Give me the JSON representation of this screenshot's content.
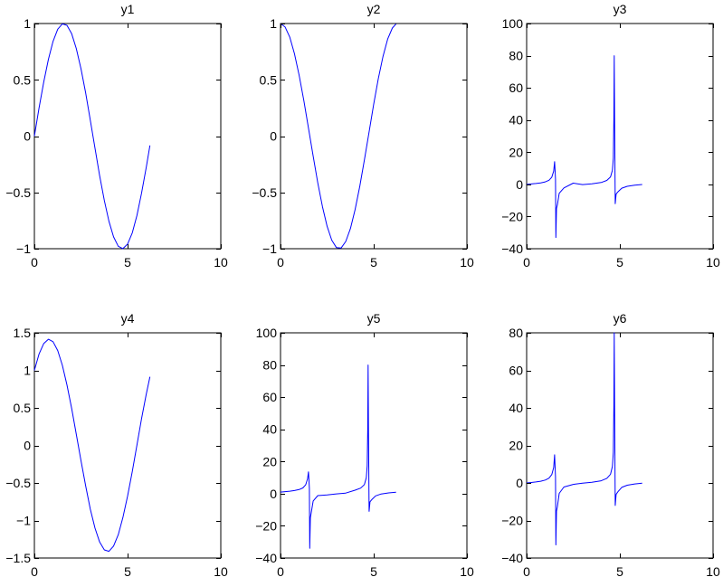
{
  "chart_data": [
    {
      "type": "line",
      "title": "y1",
      "xlim": [
        0,
        10
      ],
      "ylim": [
        -1,
        1
      ],
      "xticks": [
        0,
        5,
        10
      ],
      "xtick_labels": [
        "0",
        "5",
        "10"
      ],
      "yticks": [
        -1,
        -0.5,
        0,
        0.5,
        1
      ],
      "ytick_labels": [
        "−1",
        "−0.5",
        "0",
        "0.5",
        "1"
      ],
      "grid": false,
      "series": [
        {
          "color": "#0000ff",
          "x": [
            0,
            0.25,
            0.5,
            0.75,
            1,
            1.25,
            1.5,
            1.75,
            2,
            2.25,
            2.5,
            2.75,
            3,
            3.25,
            3.5,
            3.75,
            4,
            4.25,
            4.5,
            4.75,
            5,
            5.25,
            5.5,
            5.75,
            6,
            6.2
          ],
          "y": [
            0,
            0.247,
            0.479,
            0.682,
            0.841,
            0.949,
            0.997,
            0.984,
            0.909,
            0.778,
            0.598,
            0.382,
            0.141,
            -0.108,
            -0.351,
            -0.572,
            -0.757,
            -0.895,
            -0.978,
            -0.999,
            -0.959,
            -0.859,
            -0.706,
            -0.508,
            -0.279,
            -0.083
          ]
        }
      ]
    },
    {
      "type": "line",
      "title": "y2",
      "xlim": [
        0,
        10
      ],
      "ylim": [
        -1,
        1
      ],
      "xticks": [
        0,
        5,
        10
      ],
      "xtick_labels": [
        "0",
        "5",
        "10"
      ],
      "yticks": [
        -1,
        -0.5,
        0,
        0.5,
        1
      ],
      "ytick_labels": [
        "−1",
        "−0.5",
        "0",
        "0.5",
        "1"
      ],
      "grid": false,
      "series": [
        {
          "color": "#0000ff",
          "x": [
            0,
            0.25,
            0.5,
            0.75,
            1,
            1.25,
            1.5,
            1.75,
            2,
            2.25,
            2.5,
            2.75,
            3,
            3.25,
            3.5,
            3.75,
            4,
            4.25,
            4.5,
            4.75,
            5,
            5.25,
            5.5,
            5.75,
            6,
            6.2
          ],
          "y": [
            1,
            0.969,
            0.878,
            0.732,
            0.54,
            0.315,
            0.071,
            -0.178,
            -0.416,
            -0.628,
            -0.801,
            -0.924,
            -0.99,
            -0.994,
            -0.936,
            -0.82,
            -0.654,
            -0.446,
            -0.211,
            0.038,
            0.284,
            0.512,
            0.709,
            0.862,
            0.96,
            0.997
          ]
        }
      ]
    },
    {
      "type": "line",
      "title": "y3",
      "xlim": [
        0,
        10
      ],
      "ylim": [
        -40,
        100
      ],
      "xticks": [
        0,
        5,
        10
      ],
      "xtick_labels": [
        "0",
        "5",
        "10"
      ],
      "yticks": [
        -40,
        -20,
        0,
        20,
        40,
        60,
        80,
        100
      ],
      "ytick_labels": [
        "−40",
        "−20",
        "0",
        "20",
        "40",
        "60",
        "80",
        "100"
      ],
      "grid": false,
      "series": [
        {
          "color": "#0000ff",
          "x": [
            0,
            0.25,
            0.5,
            0.75,
            1,
            1.2,
            1.35,
            1.45,
            1.5,
            1.53,
            1.55,
            1.57,
            1.6,
            1.65,
            1.75,
            2,
            2.5,
            3,
            3.5,
            4,
            4.3,
            4.5,
            4.6,
            4.65,
            4.68,
            4.7,
            4.72,
            4.75,
            4.8,
            4.9,
            5.1,
            5.4,
            5.8,
            6.2
          ],
          "y": [
            0,
            0.26,
            0.55,
            0.93,
            1.56,
            2.57,
            4.46,
            8.24,
            14.1,
            8,
            3.2,
            -33,
            -15,
            -12.6,
            -5.52,
            -2.19,
            0.75,
            -0.14,
            0.37,
            1.16,
            2.44,
            4.64,
            8.86,
            16.3,
            41,
            80,
            42,
            -12,
            -6.05,
            -4.66,
            -2.38,
            -1.22,
            -0.52,
            -0.08
          ]
        }
      ]
    },
    {
      "type": "line",
      "title": "y4",
      "xlim": [
        0,
        10
      ],
      "ylim": [
        -1.5,
        1.5
      ],
      "xticks": [
        0,
        5,
        10
      ],
      "xtick_labels": [
        "0",
        "5",
        "10"
      ],
      "yticks": [
        -1.5,
        -1,
        -0.5,
        0,
        0.5,
        1,
        1.5
      ],
      "ytick_labels": [
        "−1.5",
        "−1",
        "−0.5",
        "0",
        "0.5",
        "1",
        "1.5"
      ],
      "grid": false,
      "series": [
        {
          "color": "#0000ff",
          "x": [
            0,
            0.25,
            0.5,
            0.75,
            1,
            1.25,
            1.5,
            1.75,
            2,
            2.25,
            2.5,
            2.75,
            3,
            3.25,
            3.5,
            3.75,
            4,
            4.25,
            4.5,
            4.75,
            5,
            5.25,
            5.5,
            5.75,
            6,
            6.2
          ],
          "y": [
            1,
            1.216,
            1.357,
            1.414,
            1.382,
            1.264,
            1.068,
            0.806,
            0.493,
            0.15,
            -0.203,
            -0.541,
            -0.849,
            -1.102,
            -1.287,
            -1.392,
            -1.411,
            -1.341,
            -1.189,
            -0.961,
            -0.675,
            -0.347,
            0.003,
            0.354,
            0.681,
            0.914
          ]
        }
      ]
    },
    {
      "type": "line",
      "title": "y5",
      "xlim": [
        0,
        10
      ],
      "ylim": [
        -40,
        100
      ],
      "xticks": [
        0,
        5,
        10
      ],
      "xtick_labels": [
        "0",
        "5",
        "10"
      ],
      "yticks": [
        -40,
        -20,
        0,
        20,
        40,
        60,
        80,
        100
      ],
      "ytick_labels": [
        "−40",
        "−20",
        "0",
        "20",
        "40",
        "60",
        "80",
        "100"
      ],
      "grid": false,
      "series": [
        {
          "color": "#0000ff",
          "x": [
            0,
            0.25,
            0.5,
            0.75,
            1,
            1.2,
            1.35,
            1.45,
            1.5,
            1.53,
            1.55,
            1.57,
            1.6,
            1.65,
            1.75,
            2,
            2.5,
            3,
            3.5,
            4,
            4.3,
            4.5,
            4.6,
            4.65,
            4.68,
            4.7,
            4.72,
            4.75,
            4.8,
            4.9,
            5.1,
            5.4,
            5.8,
            6.2
          ],
          "y": [
            1,
            1.26,
            1.55,
            1.93,
            2.56,
            3.57,
            5.46,
            9.24,
            13.6,
            8,
            3.2,
            -34,
            -15,
            -11.6,
            -4.52,
            -1.19,
            -0.75,
            -0.14,
            0.37,
            2.16,
            3.44,
            5.64,
            9.86,
            17.3,
            40,
            80,
            42,
            -11,
            -5.05,
            -3.66,
            -1.38,
            -0.22,
            0.48,
            0.92
          ]
        }
      ]
    },
    {
      "type": "line",
      "title": "y6",
      "xlim": [
        0,
        10
      ],
      "ylim": [
        -40,
        80
      ],
      "xticks": [
        0,
        5,
        10
      ],
      "xtick_labels": [
        "0",
        "5",
        "10"
      ],
      "yticks": [
        -40,
        -20,
        0,
        20,
        40,
        60,
        80
      ],
      "ytick_labels": [
        "−40",
        "−20",
        "0",
        "20",
        "40",
        "60",
        "80"
      ],
      "grid": false,
      "series": [
        {
          "color": "#0000ff",
          "x": [
            0,
            0.25,
            0.5,
            0.75,
            1,
            1.2,
            1.35,
            1.45,
            1.5,
            1.53,
            1.55,
            1.57,
            1.6,
            1.65,
            1.75,
            2,
            2.5,
            3,
            3.5,
            4,
            4.3,
            4.5,
            4.6,
            4.65,
            4.68,
            4.7,
            4.72,
            4.75,
            4.8,
            4.9,
            5.1,
            5.4,
            5.8,
            6.2
          ],
          "y": [
            0,
            0.26,
            0.55,
            0.93,
            1.56,
            2.57,
            4.46,
            8.24,
            15,
            8,
            3.2,
            -33,
            -15,
            -12.6,
            -5.52,
            -2.19,
            -0.75,
            -0.14,
            0.37,
            1.16,
            2.44,
            4.64,
            8.86,
            16.3,
            41,
            80,
            42,
            -12,
            -6.05,
            -4.66,
            -2.38,
            -1.22,
            -0.52,
            -0.08
          ]
        }
      ]
    }
  ]
}
